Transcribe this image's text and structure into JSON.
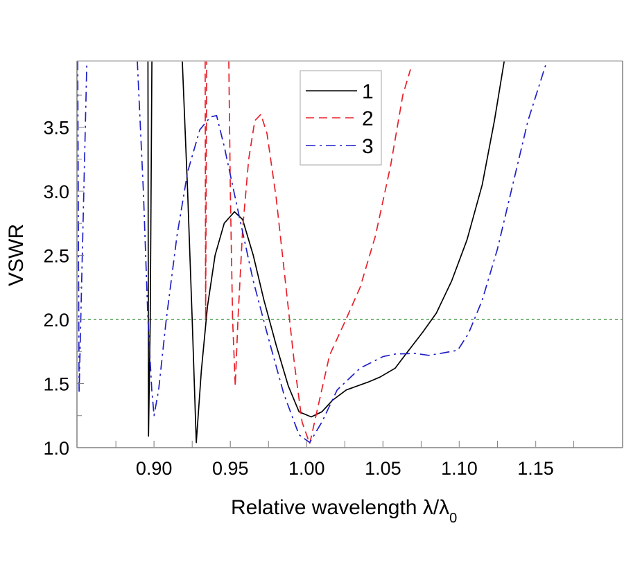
{
  "chart_data": {
    "type": "line",
    "title": "",
    "xlabel": "Relative wavelength λ/λ",
    "xlabel_subscript": "0",
    "ylabel": "VSWR",
    "xlim": [
      0.8495,
      1.207
    ],
    "ylim": [
      1.0,
      4.016
    ],
    "x_ticks": [
      0.9,
      0.95,
      1.0,
      1.05,
      1.1,
      1.15
    ],
    "x_tick_labels": [
      "0.90",
      "0.95",
      "1.00",
      "1.05",
      "1.10",
      "1.15"
    ],
    "x_minor_ticks": [
      0.875,
      0.925,
      0.975,
      1.025,
      1.075,
      1.125,
      1.175
    ],
    "y_ticks": [
      1.0,
      1.5,
      2.0,
      2.5,
      3.0,
      3.5
    ],
    "y_tick_labels": [
      "1.0",
      "1.5",
      "2.0",
      "2.5",
      "3.0",
      "3.5"
    ],
    "y_minor_ticks": [
      1.25,
      1.75,
      2.25,
      2.75,
      3.25,
      3.75
    ],
    "grid": false,
    "legend_position": "top-center",
    "reference_line": {
      "y": 2.0,
      "color": "#2e8b2e",
      "style": "dotted"
    },
    "series": [
      {
        "name": "1",
        "color": "#000000",
        "style": "solid",
        "points": [
          [
            0.896,
            4.02
          ],
          [
            0.8962,
            2.5
          ],
          [
            0.8964,
            1.09
          ],
          [
            0.8975,
            2.0
          ],
          [
            0.8986,
            4.02
          ],
          [
            0.9185,
            4.02
          ],
          [
            0.922,
            3.0
          ],
          [
            0.925,
            2.0
          ],
          [
            0.9277,
            1.04
          ],
          [
            0.931,
            1.6
          ],
          [
            0.935,
            2.1
          ],
          [
            0.94,
            2.5
          ],
          [
            0.946,
            2.75
          ],
          [
            0.9527,
            2.84
          ],
          [
            0.958,
            2.78
          ],
          [
            0.965,
            2.5
          ],
          [
            0.972,
            2.15
          ],
          [
            0.98,
            1.8
          ],
          [
            0.988,
            1.48
          ],
          [
            0.995,
            1.28
          ],
          [
            1.003,
            1.24
          ],
          [
            1.01,
            1.28
          ],
          [
            1.017,
            1.37
          ],
          [
            1.026,
            1.45
          ],
          [
            1.04,
            1.51
          ],
          [
            1.048,
            1.55
          ],
          [
            1.058,
            1.62
          ],
          [
            1.065,
            1.73
          ],
          [
            1.076,
            1.9
          ],
          [
            1.085,
            2.05
          ],
          [
            1.095,
            2.3
          ],
          [
            1.105,
            2.62
          ],
          [
            1.115,
            3.05
          ],
          [
            1.123,
            3.55
          ],
          [
            1.1295,
            4.02
          ]
        ]
      },
      {
        "name": "2",
        "color": "#e8202a",
        "style": "dashed",
        "points": [
          [
            0.9335,
            4.02
          ],
          [
            0.9338,
            2.0
          ],
          [
            0.9345,
            4.02
          ]
        ],
        "points_b": [
          [
            0.949,
            4.02
          ],
          [
            0.95,
            3.0
          ],
          [
            0.9515,
            2.0
          ],
          [
            0.9532,
            1.48
          ],
          [
            0.955,
            2.0
          ],
          [
            0.958,
            2.7
          ],
          [
            0.962,
            3.25
          ],
          [
            0.966,
            3.55
          ],
          [
            0.97,
            3.6
          ],
          [
            0.974,
            3.45
          ],
          [
            0.98,
            2.95
          ],
          [
            0.986,
            2.3
          ],
          [
            0.992,
            1.65
          ],
          [
            0.997,
            1.2
          ],
          [
            1.002,
            1.03
          ],
          [
            1.008,
            1.35
          ],
          [
            1.015,
            1.72
          ],
          [
            1.025,
            1.98
          ],
          [
            1.035,
            2.25
          ],
          [
            1.045,
            2.65
          ],
          [
            1.055,
            3.2
          ],
          [
            1.063,
            3.75
          ],
          [
            1.068,
            3.95
          ]
        ]
      },
      {
        "name": "3",
        "color": "#2020c8",
        "style": "dashdot",
        "points": [
          [
            0.85,
            4.02
          ],
          [
            0.8505,
            2.5
          ],
          [
            0.8509,
            1.43
          ],
          [
            0.852,
            2.0
          ],
          [
            0.854,
            3.0
          ],
          [
            0.856,
            4.02
          ]
        ],
        "points_b": [
          [
            0.889,
            4.02
          ],
          [
            0.893,
            3.0
          ],
          [
            0.896,
            2.0
          ],
          [
            0.8985,
            1.45
          ],
          [
            0.9,
            1.25
          ],
          [
            0.903,
            1.45
          ],
          [
            0.908,
            2.0
          ],
          [
            0.915,
            2.65
          ],
          [
            0.922,
            3.15
          ],
          [
            0.93,
            3.48
          ],
          [
            0.937,
            3.58
          ],
          [
            0.941,
            3.59
          ],
          [
            0.946,
            3.35
          ],
          [
            0.955,
            2.85
          ],
          [
            0.965,
            2.3
          ],
          [
            0.975,
            1.85
          ],
          [
            0.985,
            1.42
          ],
          [
            0.995,
            1.1
          ],
          [
            1.002,
            1.04
          ],
          [
            1.01,
            1.2
          ],
          [
            1.02,
            1.45
          ],
          [
            1.035,
            1.62
          ],
          [
            1.05,
            1.71
          ],
          [
            1.058,
            1.73
          ],
          [
            1.071,
            1.735
          ],
          [
            1.08,
            1.72
          ],
          [
            1.09,
            1.74
          ],
          [
            1.099,
            1.76
          ],
          [
            1.106,
            1.89
          ],
          [
            1.115,
            2.15
          ],
          [
            1.125,
            2.55
          ],
          [
            1.135,
            3.05
          ],
          [
            1.145,
            3.55
          ],
          [
            1.157,
            4.0
          ]
        ]
      }
    ]
  }
}
